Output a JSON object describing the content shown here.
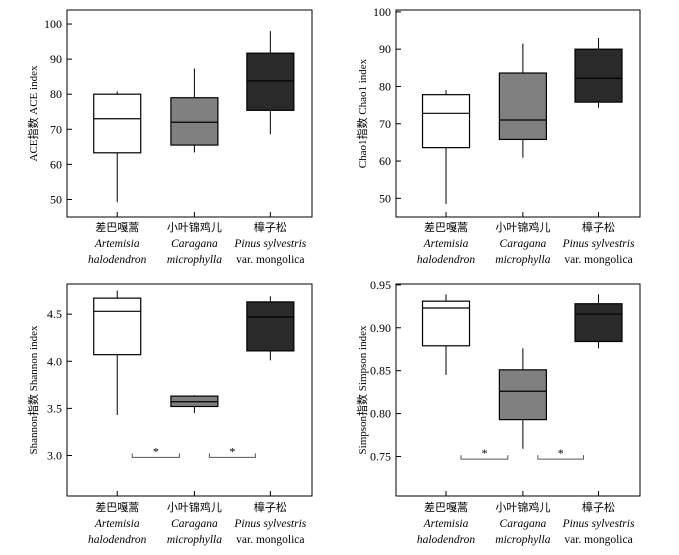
{
  "categories": [
    {
      "cn": "差巴嘎蒿",
      "latin1": "Artemisia",
      "latin2": "halodendron",
      "latin2_italic": true
    },
    {
      "cn": "小叶锦鸡儿",
      "latin1": "Caragana",
      "latin2": "microphylla",
      "latin2_italic": true
    },
    {
      "cn": "樟子松",
      "latin1": "Pinus sylvestris",
      "latin2": "var. mongolica",
      "latin2_italic": false
    }
  ],
  "colors": {
    "fills": [
      "#ffffff",
      "#808080",
      "#2a2a2a"
    ],
    "stroke": "#000000"
  },
  "chart_data": [
    {
      "type": "box",
      "ylabel": "ACE指数 ACE index",
      "ylim": [
        45,
        104
      ],
      "yticks": [
        50,
        60,
        70,
        80,
        90,
        100
      ],
      "boxes": [
        {
          "min": 49.2,
          "q1": 63.3,
          "median": 73.0,
          "q3": 80.0,
          "max": 80.8
        },
        {
          "min": 63.4,
          "q1": 65.5,
          "median": 72.0,
          "q3": 79.0,
          "max": 87.3
        },
        {
          "min": 68.6,
          "q1": 75.4,
          "median": 83.8,
          "q3": 91.7,
          "max": 98.0
        }
      ],
      "significance": []
    },
    {
      "type": "box",
      "ylabel": "Chao1指数 Chao1 index",
      "ylim": [
        45,
        100.5
      ],
      "yticks": [
        50,
        60,
        70,
        80,
        90,
        100
      ],
      "boxes": [
        {
          "min": 48.5,
          "q1": 63.6,
          "median": 72.8,
          "q3": 77.8,
          "max": 79.0
        },
        {
          "min": 60.9,
          "q1": 65.8,
          "median": 71.0,
          "q3": 83.6,
          "max": 91.5
        },
        {
          "min": 74.3,
          "q1": 75.8,
          "median": 82.2,
          "q3": 90.0,
          "max": 93.0
        }
      ],
      "significance": []
    },
    {
      "type": "box",
      "ylabel": "Shannon指数 Shannon index",
      "ylim": [
        2.57,
        4.82
      ],
      "yticks": [
        3.0,
        3.5,
        4.0,
        4.5
      ],
      "tick_decimals": 1,
      "boxes": [
        {
          "min": 3.43,
          "q1": 4.07,
          "median": 4.53,
          "q3": 4.67,
          "max": 4.75
        },
        {
          "min": 3.45,
          "q1": 3.52,
          "median": 3.57,
          "q3": 3.63,
          "max": 3.64
        },
        {
          "min": 4.01,
          "q1": 4.11,
          "median": 4.47,
          "q3": 4.63,
          "max": 4.69
        }
      ],
      "significance": [
        {
          "from": 0,
          "to": 1,
          "y": 2.98,
          "label": "*"
        },
        {
          "from": 1,
          "to": 2,
          "y": 2.98,
          "label": "*"
        }
      ]
    },
    {
      "type": "box",
      "ylabel": "Simpson指数 Simpson index",
      "ylim": [
        0.704,
        0.951
      ],
      "yticks": [
        0.75,
        0.8,
        0.85,
        0.9,
        0.95
      ],
      "tick_decimals": 2,
      "boxes": [
        {
          "min": 0.845,
          "q1": 0.879,
          "median": 0.923,
          "q3": 0.931,
          "max": 0.939
        },
        {
          "min": 0.759,
          "q1": 0.793,
          "median": 0.826,
          "q3": 0.851,
          "max": 0.876
        },
        {
          "min": 0.876,
          "q1": 0.884,
          "median": 0.916,
          "q3": 0.928,
          "max": 0.939
        }
      ],
      "significance": [
        {
          "from": 0,
          "to": 1,
          "y": 0.747,
          "label": "*"
        },
        {
          "from": 1,
          "to": 2,
          "y": 0.747,
          "label": "*"
        }
      ]
    }
  ]
}
